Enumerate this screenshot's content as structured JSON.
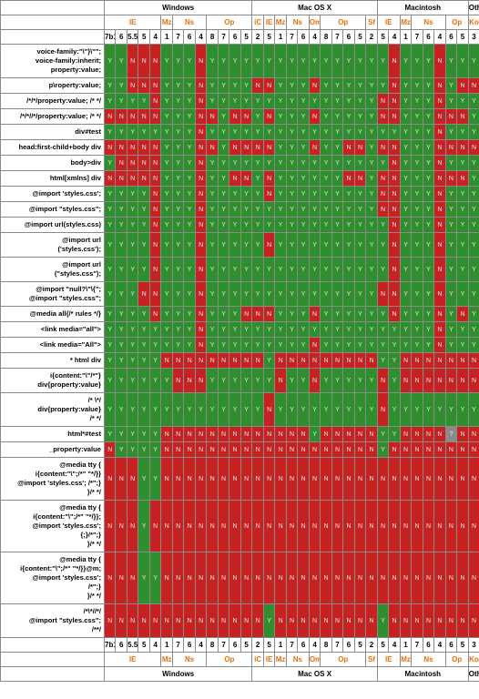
{
  "groups": [
    {
      "os": "Windows",
      "browsers": [
        {
          "name": "IE",
          "versions": [
            "7b1",
            "6",
            "5.5",
            "5",
            "4"
          ]
        },
        {
          "name": "Mz",
          "versions": [
            "1"
          ]
        },
        {
          "name": "Ns",
          "versions": [
            "7",
            "6",
            "4"
          ]
        },
        {
          "name": "Op",
          "versions": [
            "8",
            "7",
            "6",
            "5"
          ]
        }
      ]
    },
    {
      "os": "Mac OS X",
      "browsers": [
        {
          "name": "iC",
          "versions": [
            "2"
          ]
        },
        {
          "name": "IE",
          "versions": [
            "5"
          ]
        },
        {
          "name": "Mz",
          "versions": [
            "1"
          ]
        },
        {
          "name": "Ns",
          "versions": [
            "7",
            "6"
          ]
        },
        {
          "name": "Om",
          "versions": [
            "4"
          ]
        },
        {
          "name": "Op",
          "versions": [
            "8",
            "7",
            "6",
            "5"
          ]
        },
        {
          "name": "Sf",
          "versions": [
            "2"
          ]
        }
      ]
    },
    {
      "os": "Macintosh",
      "browsers": [
        {
          "name": "IE",
          "versions": [
            "5",
            "4"
          ]
        },
        {
          "name": "Mz",
          "versions": [
            "1"
          ]
        },
        {
          "name": "Ns",
          "versions": [
            "7",
            "6",
            "4"
          ]
        },
        {
          "name": "Op",
          "versions": [
            "6",
            "5"
          ]
        }
      ]
    },
    {
      "os": "Other",
      "browsers": [
        {
          "name": "Ko",
          "versions": [
            "3"
          ]
        }
      ]
    }
  ],
  "rows": [
    {
      "label": [
        "voice-family:\"\\\"}\\\"\";",
        "voice-family:inherit;",
        "property:value;"
      ],
      "cells": [
        "Y",
        "Y",
        "N",
        "N",
        "N",
        "Y",
        "Y",
        "Y",
        "N",
        "Y",
        "Y",
        "Y",
        "Y",
        "Y",
        "Y",
        "Y",
        "Y",
        "Y",
        "Y",
        "Y",
        "Y",
        "Y",
        "Y",
        "Y",
        "Y",
        "N",
        "Y",
        "Y",
        "Y",
        "N",
        "Y",
        "Y",
        "Y"
      ]
    },
    {
      "label": [
        "p\\roperty:value;"
      ],
      "cells": [
        "Y",
        "Y",
        "N",
        "N",
        "N",
        "Y",
        "Y",
        "Y",
        "N",
        "Y",
        "Y",
        "Y",
        "Y",
        "N",
        "N",
        "Y",
        "Y",
        "Y",
        "N",
        "Y",
        "Y",
        "Y",
        "Y",
        "Y",
        "Y",
        "N",
        "Y",
        "Y",
        "Y",
        "N",
        "Y",
        "N",
        "N"
      ]
    },
    {
      "label": [
        "/*/*/property:value; /* */"
      ],
      "cells": [
        "Y",
        "Y",
        "Y",
        "Y",
        "N",
        "Y",
        "Y",
        "Y",
        "N",
        "Y",
        "Y",
        "Y",
        "Y",
        "Y",
        "Y",
        "Y",
        "Y",
        "Y",
        "Y",
        "Y",
        "Y",
        "Y",
        "Y",
        "Y",
        "N",
        "N",
        "Y",
        "Y",
        "Y",
        "N",
        "Y",
        "Y",
        "Y"
      ]
    },
    {
      "label": [
        "/*/*//*/property:value; /* */"
      ],
      "cells": [
        "N",
        "N",
        "N",
        "N",
        "N",
        "Y",
        "Y",
        "Y",
        "N",
        "N",
        "Y",
        "N",
        "N",
        "Y",
        "N",
        "Y",
        "Y",
        "Y",
        "N",
        "Y",
        "Y",
        "Y",
        "Y",
        "Y",
        "N",
        "N",
        "Y",
        "Y",
        "Y",
        "N",
        "N",
        "N",
        "Y"
      ]
    },
    {
      "label": [
        "div#test"
      ],
      "cells": [
        "Y",
        "Y",
        "Y",
        "Y",
        "Y",
        "Y",
        "Y",
        "Y",
        "N",
        "Y",
        "Y",
        "Y",
        "Y",
        "Y",
        "Y",
        "Y",
        "Y",
        "Y",
        "Y",
        "Y",
        "Y",
        "Y",
        "Y",
        "Y",
        "Y",
        "Y",
        "Y",
        "Y",
        "Y",
        "N",
        "Y",
        "Y",
        "Y"
      ]
    },
    {
      "label": [
        "head:first-child+body div"
      ],
      "cells": [
        "N",
        "N",
        "N",
        "N",
        "N",
        "Y",
        "Y",
        "Y",
        "N",
        "N",
        "Y",
        "N",
        "N",
        "N",
        "N",
        "Y",
        "Y",
        "Y",
        "N",
        "Y",
        "Y",
        "N",
        "N",
        "Y",
        "N",
        "N",
        "Y",
        "Y",
        "Y",
        "N",
        "N",
        "N",
        "N"
      ]
    },
    {
      "label": [
        "body>div"
      ],
      "cells": [
        "Y",
        "N",
        "N",
        "N",
        "N",
        "Y",
        "Y",
        "Y",
        "N",
        "Y",
        "Y",
        "Y",
        "Y",
        "Y",
        "Y",
        "Y",
        "Y",
        "Y",
        "Y",
        "Y",
        "Y",
        "Y",
        "Y",
        "Y",
        "Y",
        "N",
        "Y",
        "Y",
        "Y",
        "N",
        "Y",
        "Y",
        "Y"
      ]
    },
    {
      "label": [
        "html[xmlns] div"
      ],
      "cells": [
        "N",
        "N",
        "N",
        "N",
        "N",
        "Y",
        "Y",
        "Y",
        "N",
        "Y",
        "Y",
        "N",
        "N",
        "Y",
        "N",
        "Y",
        "Y",
        "Y",
        "Y",
        "Y",
        "Y",
        "N",
        "N",
        "Y",
        "N",
        "N",
        "Y",
        "Y",
        "Y",
        "N",
        "N",
        "N",
        "Y"
      ]
    },
    {
      "label": [
        "@import 'styles.css';"
      ],
      "cells": [
        "Y",
        "Y",
        "Y",
        "Y",
        "N",
        "Y",
        "Y",
        "Y",
        "N",
        "Y",
        "Y",
        "Y",
        "Y",
        "Y",
        "N",
        "Y",
        "Y",
        "Y",
        "Y",
        "Y",
        "Y",
        "Y",
        "Y",
        "Y",
        "N",
        "N",
        "Y",
        "Y",
        "Y",
        "N",
        "Y",
        "Y",
        "Y"
      ]
    },
    {
      "label": [
        "@import \"styles.css\";"
      ],
      "cells": [
        "Y",
        "Y",
        "Y",
        "Y",
        "N",
        "Y",
        "Y",
        "Y",
        "N",
        "Y",
        "Y",
        "Y",
        "Y",
        "Y",
        "Y",
        "Y",
        "Y",
        "Y",
        "Y",
        "Y",
        "Y",
        "Y",
        "Y",
        "Y",
        "N",
        "N",
        "Y",
        "Y",
        "Y",
        "N",
        "Y",
        "Y",
        "Y"
      ]
    },
    {
      "label": [
        "@import url(styles.css)"
      ],
      "cells": [
        "Y",
        "Y",
        "Y",
        "Y",
        "N",
        "Y",
        "Y",
        "Y",
        "N",
        "Y",
        "Y",
        "Y",
        "Y",
        "Y",
        "Y",
        "Y",
        "Y",
        "Y",
        "Y",
        "Y",
        "Y",
        "Y",
        "Y",
        "Y",
        "Y",
        "N",
        "Y",
        "Y",
        "Y",
        "N",
        "Y",
        "Y",
        "Y"
      ]
    },
    {
      "label": [
        "@import url",
        "('styles.css');"
      ],
      "cells": [
        "Y",
        "Y",
        "Y",
        "Y",
        "N",
        "Y",
        "Y",
        "Y",
        "N",
        "Y",
        "Y",
        "Y",
        "Y",
        "Y",
        "N",
        "Y",
        "Y",
        "Y",
        "Y",
        "Y",
        "Y",
        "Y",
        "Y",
        "Y",
        "Y",
        "N",
        "Y",
        "Y",
        "Y",
        "N",
        "Y",
        "Y",
        "Y"
      ]
    },
    {
      "label": [
        "@import url",
        "(\"styles.css\");"
      ],
      "cells": [
        "Y",
        "Y",
        "Y",
        "Y",
        "N",
        "Y",
        "Y",
        "Y",
        "N",
        "Y",
        "Y",
        "Y",
        "Y",
        "Y",
        "Y",
        "Y",
        "Y",
        "Y",
        "Y",
        "Y",
        "Y",
        "Y",
        "Y",
        "Y",
        "Y",
        "N",
        "Y",
        "Y",
        "Y",
        "N",
        "Y",
        "Y",
        "Y"
      ]
    },
    {
      "label": [
        "@import \"null?\\\"\\{\";",
        "@import \"styles.css\";"
      ],
      "cells": [
        "Y",
        "Y",
        "Y",
        "N",
        "N",
        "Y",
        "Y",
        "Y",
        "N",
        "Y",
        "Y",
        "Y",
        "Y",
        "Y",
        "Y",
        "Y",
        "Y",
        "Y",
        "Y",
        "Y",
        "Y",
        "Y",
        "Y",
        "Y",
        "N",
        "N",
        "Y",
        "Y",
        "Y",
        "N",
        "Y",
        "Y",
        "Y"
      ]
    },
    {
      "label": [
        "@media all{/* rules */}"
      ],
      "cells": [
        "Y",
        "Y",
        "Y",
        "Y",
        "N",
        "Y",
        "Y",
        "Y",
        "N",
        "Y",
        "Y",
        "Y",
        "N",
        "N",
        "N",
        "Y",
        "Y",
        "Y",
        "N",
        "Y",
        "Y",
        "Y",
        "Y",
        "Y",
        "Y",
        "N",
        "Y",
        "Y",
        "Y",
        "N",
        "Y",
        "N",
        "Y"
      ]
    },
    {
      "label": [
        "<link media=\"all\">"
      ],
      "cells": [
        "Y",
        "Y",
        "Y",
        "Y",
        "Y",
        "Y",
        "Y",
        "Y",
        "N",
        "Y",
        "Y",
        "Y",
        "Y",
        "Y",
        "Y",
        "Y",
        "Y",
        "Y",
        "Y",
        "Y",
        "Y",
        "Y",
        "Y",
        "Y",
        "Y",
        "Y",
        "Y",
        "Y",
        "Y",
        "N",
        "Y",
        "Y",
        "Y"
      ]
    },
    {
      "label": [
        "<link media=\"All\">"
      ],
      "cells": [
        "Y",
        "Y",
        "Y",
        "Y",
        "Y",
        "Y",
        "Y",
        "Y",
        "N",
        "Y",
        "Y",
        "Y",
        "Y",
        "Y",
        "Y",
        "Y",
        "Y",
        "Y",
        "N",
        "Y",
        "Y",
        "Y",
        "Y",
        "Y",
        "Y",
        "Y",
        "Y",
        "Y",
        "Y",
        "N",
        "Y",
        "Y",
        "Y"
      ]
    },
    {
      "label": [
        "* html div"
      ],
      "cells": [
        "Y",
        "Y",
        "Y",
        "Y",
        "Y",
        "N",
        "N",
        "N",
        "N",
        "N",
        "N",
        "N",
        "N",
        "N",
        "Y",
        "N",
        "N",
        "N",
        "N",
        "N",
        "N",
        "N",
        "N",
        "N",
        "Y",
        "Y",
        "N",
        "N",
        "N",
        "N",
        "N",
        "N",
        "N"
      ]
    },
    {
      "label": [
        "i{content:\"\\\"/*\"}",
        "div{property:value}"
      ],
      "cells": [
        "Y",
        "Y",
        "Y",
        "Y",
        "Y",
        "Y",
        "N",
        "N",
        "N",
        "Y",
        "Y",
        "Y",
        "Y",
        "Y",
        "Y",
        "N",
        "Y",
        "Y",
        "N",
        "Y",
        "Y",
        "Y",
        "Y",
        "Y",
        "N",
        "Y",
        "N",
        "N",
        "N",
        "N",
        "N",
        "N",
        "N"
      ]
    },
    {
      "label": [
        "/* \\*/",
        "div{property:value}",
        "/* */"
      ],
      "cells": [
        "Y",
        "Y",
        "Y",
        "Y",
        "Y",
        "Y",
        "Y",
        "Y",
        "Y",
        "Y",
        "Y",
        "Y",
        "Y",
        "Y",
        "N",
        "Y",
        "Y",
        "Y",
        "Y",
        "Y",
        "Y",
        "Y",
        "Y",
        "Y",
        "N",
        "Y",
        "Y",
        "Y",
        "Y",
        "Y",
        "Y",
        "Y",
        "Y"
      ]
    },
    {
      "label": [
        "html*#test"
      ],
      "cells": [
        "Y",
        "Y",
        "Y",
        "Y",
        "Y",
        "N",
        "N",
        "N",
        "N",
        "N",
        "N",
        "N",
        "N",
        "N",
        "N",
        "N",
        "N",
        "N",
        "Y",
        "N",
        "N",
        "N",
        "N",
        "N",
        "Y",
        "Y",
        "N",
        "N",
        "N",
        "N",
        "?",
        "N",
        "N"
      ]
    },
    {
      "label": [
        "_property:value"
      ],
      "cells": [
        "N",
        "Y",
        "Y",
        "Y",
        "Y",
        "N",
        "N",
        "N",
        "N",
        "N",
        "N",
        "N",
        "N",
        "N",
        "N",
        "N",
        "N",
        "N",
        "N",
        "N",
        "N",
        "N",
        "N",
        "N",
        "Y",
        "N",
        "N",
        "N",
        "N",
        "N",
        "N",
        "N",
        "N"
      ]
    },
    {
      "label": [
        "@media tty {",
        "i{content:\"\\\";/*\" \"*/}}",
        "@import 'styles.css'; /*\";}",
        "}/* */"
      ],
      "cells": [
        "N",
        "N",
        "N",
        "Y",
        "Y",
        "N",
        "N",
        "N",
        "N",
        "N",
        "N",
        "N",
        "N",
        "N",
        "N",
        "N",
        "N",
        "N",
        "N",
        "N",
        "N",
        "N",
        "N",
        "N",
        "N",
        "N",
        "N",
        "N",
        "N",
        "N",
        "N",
        "N",
        "N"
      ]
    },
    {
      "label": [
        "@media tty {",
        "i{content:\"\\\";/*\" \"*/}};",
        "@import 'styles.css';",
        "{;}/*\";}",
        "}/* */"
      ],
      "cells": [
        "N",
        "N",
        "N",
        "Y",
        "N",
        "N",
        "N",
        "N",
        "N",
        "N",
        "N",
        "N",
        "N",
        "N",
        "N",
        "N",
        "N",
        "N",
        "N",
        "N",
        "N",
        "N",
        "N",
        "N",
        "N",
        "N",
        "N",
        "N",
        "N",
        "N",
        "N",
        "N",
        "N"
      ]
    },
    {
      "label": [
        "@media tty {",
        "i{content:\"\\\";/*\" \"*/}}@m;",
        "@import 'styles.css';",
        "/*\";}",
        "}/* */"
      ],
      "cells": [
        "N",
        "N",
        "N",
        "Y",
        "Y",
        "N",
        "N",
        "N",
        "N",
        "N",
        "N",
        "N",
        "N",
        "N",
        "N",
        "N",
        "N",
        "N",
        "N",
        "N",
        "N",
        "N",
        "N",
        "N",
        "N",
        "N",
        "N",
        "N",
        "N",
        "N",
        "N",
        "N",
        "N"
      ]
    },
    {
      "label": [
        "/*\\*//*/",
        "@import \"styles.css\";",
        "/**/"
      ],
      "cells": [
        "N",
        "N",
        "N",
        "N",
        "N",
        "N",
        "N",
        "N",
        "N",
        "N",
        "N",
        "N",
        "N",
        "N",
        "Y",
        "N",
        "N",
        "N",
        "N",
        "N",
        "N",
        "N",
        "N",
        "N",
        "Y",
        "N",
        "N",
        "N",
        "N",
        "N",
        "N",
        "N",
        "N"
      ]
    }
  ]
}
